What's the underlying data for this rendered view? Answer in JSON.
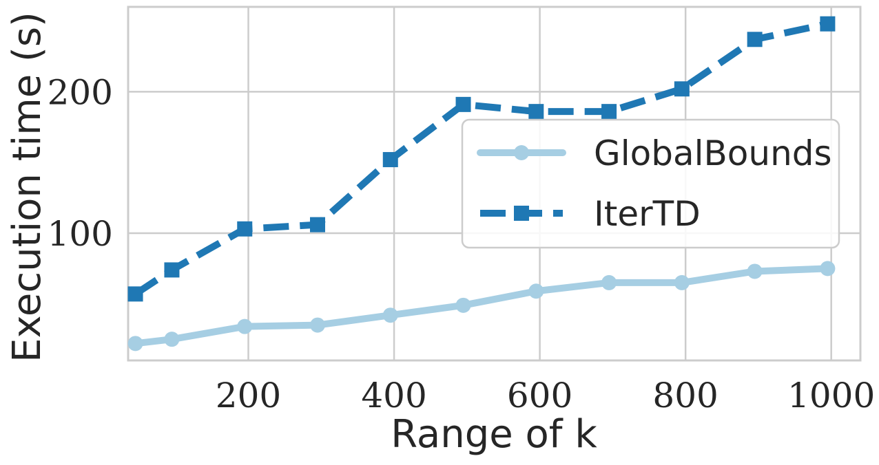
{
  "chart_data": {
    "type": "line",
    "xlabel": "Range of k",
    "ylabel": "Execution time (s)",
    "xlim": [
      35,
      1040
    ],
    "ylim": [
      10,
      260
    ],
    "xticks": [
      200,
      400,
      600,
      800,
      1000
    ],
    "yticks": [
      100,
      200
    ],
    "xtick_labels": [
      "200",
      "400",
      "600",
      "800",
      "1000"
    ],
    "ytick_labels": [
      "100",
      "200"
    ],
    "grid": true,
    "legend_position": "center-right",
    "x": [
      45,
      95,
      195,
      295,
      395,
      495,
      595,
      695,
      795,
      895,
      995
    ],
    "series": [
      {
        "name": "GlobalBounds",
        "color": "#a6cee3",
        "linestyle": "solid",
        "marker": "circle",
        "values": [
          22,
          25,
          34,
          35,
          42,
          49,
          59,
          65,
          65,
          73,
          75
        ]
      },
      {
        "name": "IterTD",
        "color": "#1f78b4",
        "linestyle": "dashed",
        "marker": "square",
        "values": [
          57,
          74,
          103,
          106,
          152,
          191,
          186,
          186,
          202,
          237,
          248
        ]
      }
    ]
  }
}
